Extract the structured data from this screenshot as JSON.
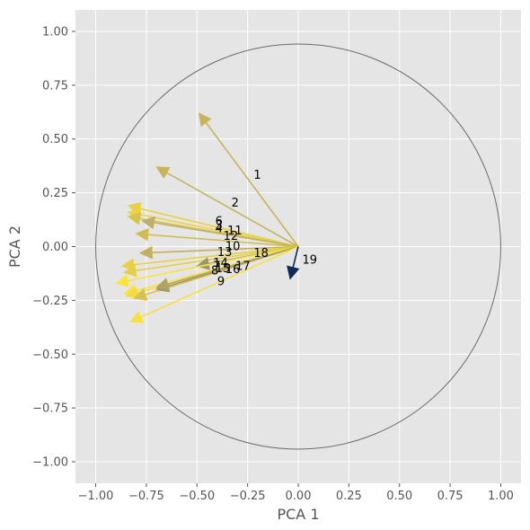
{
  "chart_data": {
    "type": "scatter",
    "subtype": "pca-correlation-circle",
    "xlabel": "PCA 1",
    "ylabel": "PCA 2",
    "xlim": [
      -1.1,
      1.1
    ],
    "ylim": [
      -1.1,
      1.1
    ],
    "xticks": [
      -1.0,
      -0.75,
      -0.5,
      -0.25,
      0.0,
      0.25,
      0.5,
      0.75,
      1.0
    ],
    "xtick_labels": [
      "−1.00",
      "−0.75",
      "−0.50",
      "−0.25",
      "0.00",
      "0.25",
      "0.50",
      "0.75",
      "1.00"
    ],
    "yticks": [
      -1.0,
      -0.75,
      -0.5,
      -0.25,
      0.0,
      0.25,
      0.5,
      0.75,
      1.0
    ],
    "ytick_labels": [
      "−1.00",
      "−0.75",
      "−0.50",
      "−0.25",
      "0.00",
      "0.25",
      "0.50",
      "0.75",
      "1.00"
    ],
    "grid": true,
    "style": "ggplot",
    "background_color": "#e5e5e5",
    "grid_color": "#ffffff",
    "circle_color": "#6b6b6b",
    "unit_circle_radius": 1.0,
    "vectors": [
      {
        "label": "1",
        "x": -0.49,
        "y": 0.62,
        "color": "#c8b45a"
      },
      {
        "label": "2",
        "x": -0.7,
        "y": 0.37,
        "color": "#c8b45a"
      },
      {
        "label": "3",
        "x": -0.84,
        "y": 0.19,
        "color": "#e8d040"
      },
      {
        "label": "4",
        "x": -0.84,
        "y": 0.16,
        "color": "#ecd43c"
      },
      {
        "label": "5",
        "x": -0.84,
        "y": 0.14,
        "color": "#d8c34e"
      },
      {
        "label": "6",
        "x": -0.77,
        "y": 0.12,
        "color": "#beb06a"
      },
      {
        "label": "11",
        "x": -0.8,
        "y": 0.06,
        "color": "#d0bd52"
      },
      {
        "label": "12",
        "x": -0.78,
        "y": -0.03,
        "color": "#c2b05e"
      },
      {
        "label": "10",
        "x": -0.87,
        "y": -0.09,
        "color": "#e8d040"
      },
      {
        "label": "13",
        "x": -0.86,
        "y": -0.12,
        "color": "#e4d046"
      },
      {
        "label": "18",
        "x": -0.5,
        "y": -0.09,
        "color": "#9a9470"
      },
      {
        "label": "14",
        "x": -0.9,
        "y": -0.17,
        "color": "#fde33a"
      },
      {
        "label": "7",
        "x": -0.86,
        "y": -0.22,
        "color": "#fbe23c"
      },
      {
        "label": "15",
        "x": -0.85,
        "y": -0.23,
        "color": "#f4dc40"
      },
      {
        "label": "8",
        "x": -0.81,
        "y": -0.24,
        "color": "#d6c24e"
      },
      {
        "label": "17",
        "x": -0.7,
        "y": -0.2,
        "color": "#a09a6c"
      },
      {
        "label": "16",
        "x": -0.7,
        "y": -0.19,
        "color": "#b0a465"
      },
      {
        "label": "9",
        "x": -0.83,
        "y": -0.35,
        "color": "#f8e040"
      },
      {
        "label": "19",
        "x": -0.04,
        "y": -0.15,
        "color": "#0d2a5a"
      }
    ],
    "labels": [
      {
        "text": "1",
        "x": -0.22,
        "y": 0.335
      },
      {
        "text": "2",
        "x": -0.33,
        "y": 0.205
      },
      {
        "text": "6",
        "x": -0.41,
        "y": 0.12
      },
      {
        "text": "3",
        "x": -0.41,
        "y": 0.1
      },
      {
        "text": "4",
        "x": -0.41,
        "y": 0.085
      },
      {
        "text": "11",
        "x": -0.35,
        "y": 0.075
      },
      {
        "text": "12",
        "x": -0.37,
        "y": 0.05
      },
      {
        "text": "10",
        "x": -0.36,
        "y": 0.003
      },
      {
        "text": "13",
        "x": -0.4,
        "y": -0.025
      },
      {
        "text": "18",
        "x": -0.22,
        "y": -0.03
      },
      {
        "text": "14",
        "x": -0.42,
        "y": -0.075
      },
      {
        "text": "7",
        "x": -0.42,
        "y": -0.09
      },
      {
        "text": "15",
        "x": -0.41,
        "y": -0.1
      },
      {
        "text": "17",
        "x": -0.31,
        "y": -0.09
      },
      {
        "text": "8",
        "x": -0.43,
        "y": -0.11
      },
      {
        "text": "16",
        "x": -0.36,
        "y": -0.105
      },
      {
        "text": "9",
        "x": -0.4,
        "y": -0.16
      },
      {
        "text": "19",
        "x": 0.02,
        "y": -0.06
      }
    ]
  }
}
